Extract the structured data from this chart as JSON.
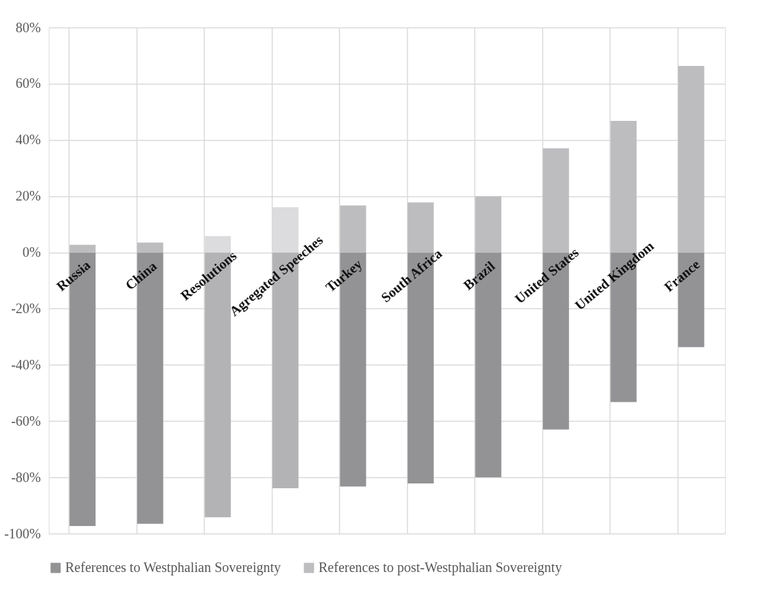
{
  "chart_data": {
    "type": "bar",
    "stacked": true,
    "categories": [
      "Russia",
      "China",
      "Resolutions",
      "Agregated Speeches",
      "Turkey",
      "South Africa",
      "Brazil",
      "United States",
      "United Kingdom",
      "France"
    ],
    "series": [
      {
        "name": "References to Westphalian Sovereignty",
        "color": "#939396",
        "colors": [
          "#939396",
          "#939396",
          "#b3b3b6",
          "#b3b3b6",
          "#939396",
          "#939396",
          "#939396",
          "#939396",
          "#939396",
          "#939396"
        ],
        "values": [
          -97.3,
          -96.5,
          -94.2,
          -83.9,
          -83.3,
          -82.2,
          -80,
          -63,
          -53.2,
          -33.7
        ]
      },
      {
        "name": "References to post-Westphalian Sovereignty",
        "color": "#bdbdc0",
        "colors": [
          "#bdbdc0",
          "#bdbdc0",
          "#dcdcde",
          "#dcdcde",
          "#bdbdc0",
          "#bdbdc0",
          "#bdbdc0",
          "#bdbdc0",
          "#bdbdc0",
          "#bdbdc0"
        ],
        "values": [
          2.7,
          3.5,
          5.8,
          16.1,
          16.7,
          17.8,
          20,
          37,
          46.8,
          66.3
        ]
      }
    ],
    "ylim": [
      -100,
      80
    ],
    "yticks": [
      {
        "value": -100,
        "label": "-100%"
      },
      {
        "value": -80,
        "label": "-80%"
      },
      {
        "value": -60,
        "label": "-60%"
      },
      {
        "value": -40,
        "label": "-40%"
      },
      {
        "value": -20,
        "label": "-20%"
      },
      {
        "value": 0,
        "label": "0%"
      },
      {
        "value": 20,
        "label": "20%"
      },
      {
        "value": 40,
        "label": "40%"
      },
      {
        "value": 60,
        "label": "60%"
      },
      {
        "value": 80,
        "label": "80%"
      }
    ],
    "grid": true,
    "legend": "bottom"
  }
}
